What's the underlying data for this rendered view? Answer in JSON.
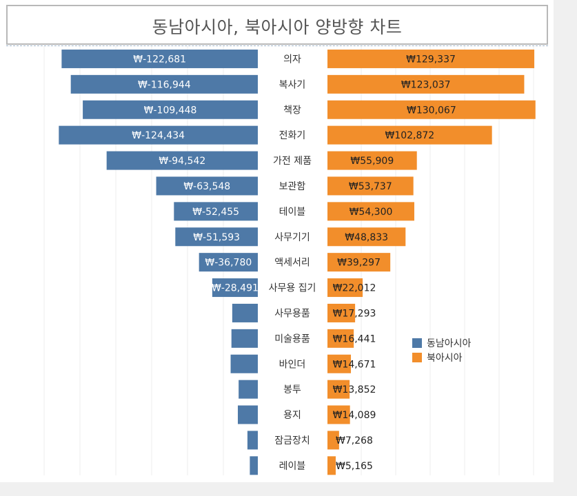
{
  "chart_data": {
    "type": "bar",
    "title": "동남아시아, 북아시아 양방향 차트",
    "categories": [
      "의자",
      "복사기",
      "책장",
      "전화기",
      "가전 제품",
      "보관함",
      "테이블",
      "사무기기",
      "액세서리",
      "사무용 집기",
      "사무용품",
      "미술용품",
      "바인더",
      "봉투",
      "용지",
      "잠금장치",
      "레이블"
    ],
    "series": [
      {
        "name": "동남아시아",
        "color": "#4e79a7",
        "values": [
          -122681,
          -116944,
          -109448,
          -124434,
          -94542,
          -63548,
          -52455,
          -51593,
          -36780,
          -28491,
          -16000,
          -16500,
          -17000,
          -12000,
          -12500,
          -6500,
          -5000
        ],
        "labels": [
          "₩-122,681",
          "₩-116,944",
          "₩-109,448",
          "₩-124,434",
          "₩-94,542",
          "₩-63,548",
          "₩-52,455",
          "₩-51,593",
          "₩-36,780",
          "₩-28,491",
          "",
          "",
          "",
          "",
          "",
          "",
          ""
        ]
      },
      {
        "name": "북아시아",
        "color": "#f28e2b",
        "values": [
          129337,
          123037,
          130067,
          102872,
          55909,
          53737,
          54300,
          48833,
          39297,
          22012,
          17293,
          16441,
          14671,
          13852,
          14089,
          7268,
          5165
        ],
        "labels": [
          "₩129,337",
          "₩123,037",
          "₩130,067",
          "₩102,872",
          "₩55,909",
          "₩53,737",
          "₩54,300",
          "₩48,833",
          "₩39,297",
          "₩22,012",
          "₩17,293",
          "₩16,441",
          "₩14,671",
          "₩13,852",
          "₩14,089",
          "₩7,268",
          "₩5,165"
        ]
      }
    ],
    "legend_position": "right",
    "grid": true
  }
}
